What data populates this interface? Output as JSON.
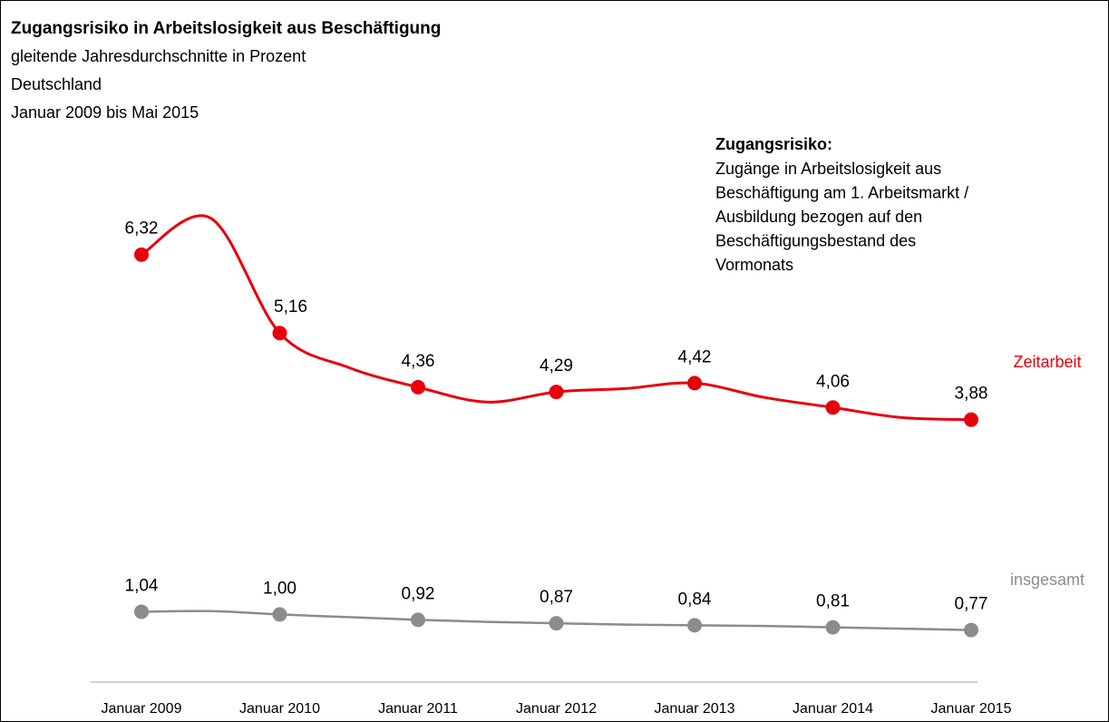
{
  "chart_data": {
    "type": "line",
    "title": "Zugangsrisiko  in Arbeitslosigkeit aus Beschäftigung",
    "subtitle": [
      "gleitende Jahresdurchschnitte in Prozent",
      "Deutschland",
      "Januar 2009 bis Mai 2015"
    ],
    "annotation": {
      "title": "Zugangsrisiko:",
      "lines": [
        "Zugänge in Arbeitslosigkeit aus",
        "Beschäftigung am 1. Arbeitsmarkt /",
        "Ausbildung bezogen auf den",
        "Beschäftigungsbestand des",
        "Vormonats"
      ]
    },
    "categories": [
      "Januar 2009",
      null,
      "Januar 2010",
      null,
      "Januar 2011",
      null,
      "Januar 2012",
      null,
      "Januar 2013",
      null,
      "Januar 2014",
      null,
      "Januar 2015"
    ],
    "ylim": [
      0,
      7
    ],
    "series": [
      {
        "name": "Zeitarbeit",
        "color": "#e8000b",
        "values": [
          6.32,
          6.86,
          5.16,
          4.65,
          4.36,
          4.14,
          4.29,
          4.34,
          4.42,
          4.21,
          4.06,
          3.91,
          3.88
        ],
        "value_labels": [
          "6,32",
          null,
          "5,16",
          null,
          "4,36",
          null,
          "4,29",
          null,
          "4,42",
          null,
          "4,06",
          null,
          "3,88"
        ]
      },
      {
        "name": "insgesamt",
        "color": "#8c8c8c",
        "values": [
          1.04,
          1.05,
          1.0,
          0.96,
          0.92,
          0.89,
          0.87,
          0.85,
          0.84,
          0.83,
          0.81,
          0.79,
          0.77
        ],
        "value_labels": [
          "1,04",
          null,
          "1,00",
          null,
          "0,92",
          null,
          "0,87",
          null,
          "0,84",
          null,
          "0,81",
          null,
          "0,77"
        ]
      }
    ]
  }
}
